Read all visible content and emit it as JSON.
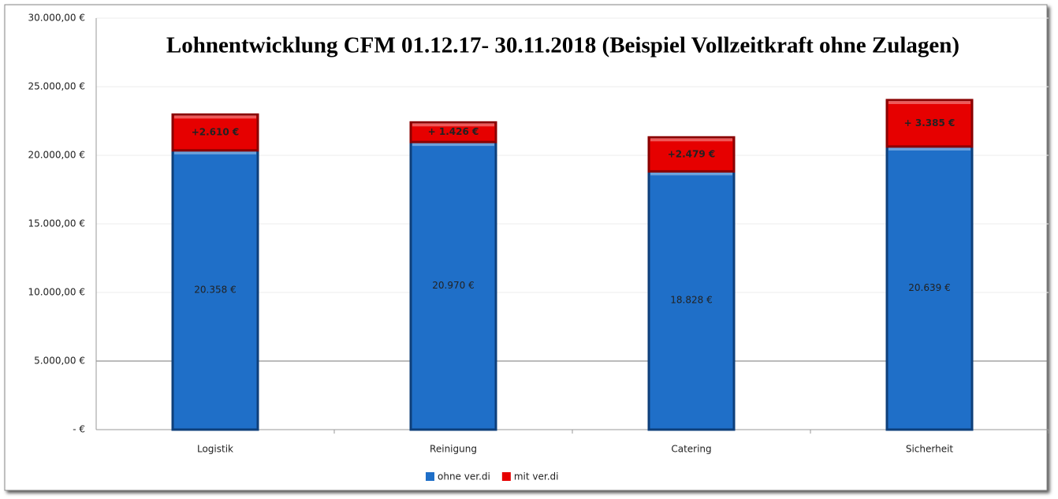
{
  "chart_data": {
    "type": "stacked_bar",
    "title": "Lohnentwicklung CFM 01.12.17- 30.11.2018 (Beispiel Vollzeitkraft ohne Zulagen)",
    "categories": [
      "Logistik",
      "Reinigung",
      "Catering",
      "Sicherheit"
    ],
    "series": [
      {
        "name": "ohne ver.di",
        "color": "#1f6fc8",
        "values": [
          20358,
          20970,
          18828,
          20639
        ],
        "value_labels": [
          "20.358 €",
          "20.970 €",
          "18.828 €",
          "20.639 €"
        ]
      },
      {
        "name": "mit ver.di",
        "color": "#e60000",
        "values": [
          2610,
          1426,
          2479,
          3385
        ],
        "value_labels": [
          "+2.610 €",
          "+ 1.426 €",
          "+2.479 €",
          "+ 3.385 €"
        ]
      }
    ],
    "ylim": [
      0,
      30000
    ],
    "yticks": [
      {
        "value": 0,
        "label": "-  €"
      },
      {
        "value": 5000,
        "label": "5.000,00 €"
      },
      {
        "value": 10000,
        "label": "10.000,00 €"
      },
      {
        "value": 15000,
        "label": "15.000,00 €"
      },
      {
        "value": 20000,
        "label": "20.000,00 €"
      },
      {
        "value": 25000,
        "label": "25.000,00 €"
      },
      {
        "value": 30000,
        "label": "30.000,00 €"
      }
    ],
    "grid": true,
    "legend": "bottom"
  }
}
